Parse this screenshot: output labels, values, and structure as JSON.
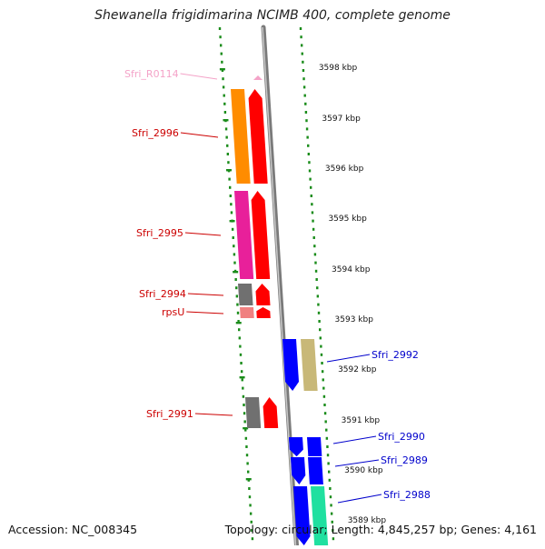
{
  "title": "Shewanella frigidimarina NCIMB 400, complete genome",
  "footer": {
    "accession": "Accession: NC_008345",
    "summary": "Topology: circular; Length: 4,845,257 bp; Genes: 4,161"
  },
  "scale": {
    "unit": "kbp",
    "ticks": [
      "3598 kbp",
      "3597 kbp",
      "3596 kbp",
      "3595 kbp",
      "3594 kbp",
      "3593 kbp",
      "3592 kbp",
      "3591 kbp",
      "3590 kbp",
      "3589 kbp"
    ]
  },
  "genes": [
    {
      "label": "Sfri_R0114",
      "color": "#f4a3c8",
      "label_color": "#f4a3c8",
      "strand": "forward",
      "feature_color": "#f4a3c8"
    },
    {
      "label": "Sfri_2996",
      "color": "#ff8c00",
      "label_color": "#cc0000",
      "strand": "forward",
      "feature_color": "#ff0000"
    },
    {
      "label": "Sfri_2995",
      "color": "#e8209a",
      "label_color": "#cc0000",
      "strand": "forward",
      "feature_color": "#ff0000"
    },
    {
      "label": "Sfri_2994",
      "color": "#707070",
      "label_color": "#cc0000",
      "strand": "forward",
      "feature_color": "#ff0000"
    },
    {
      "label": "rpsU",
      "color": "#f08080",
      "label_color": "#cc0000",
      "strand": "forward",
      "feature_color": "#ff0000"
    },
    {
      "label": "Sfri_2992",
      "color": "#c8b878",
      "label_color": "#0000cc",
      "strand": "reverse",
      "feature_color": "#0000ff"
    },
    {
      "label": "Sfri_2991",
      "color": "#707070",
      "label_color": "#cc0000",
      "strand": "forward",
      "feature_color": "#ff0000"
    },
    {
      "label": "Sfri_2990",
      "color": "#0000ff",
      "label_color": "#0000cc",
      "strand": "reverse",
      "feature_color": "#0000ff"
    },
    {
      "label": "Sfri_2989",
      "color": "#0000ff",
      "label_color": "#0000cc",
      "strand": "reverse",
      "feature_color": "#0000ff"
    },
    {
      "label": "Sfri_2988",
      "color": "#20e0a0",
      "label_color": "#0000cc",
      "strand": "reverse",
      "feature_color": "#0000ff"
    }
  ],
  "colors": {
    "backbone": "#909090",
    "track_dots": "#1a8c1a",
    "forward": "#ff0000",
    "reverse": "#0000ff"
  }
}
